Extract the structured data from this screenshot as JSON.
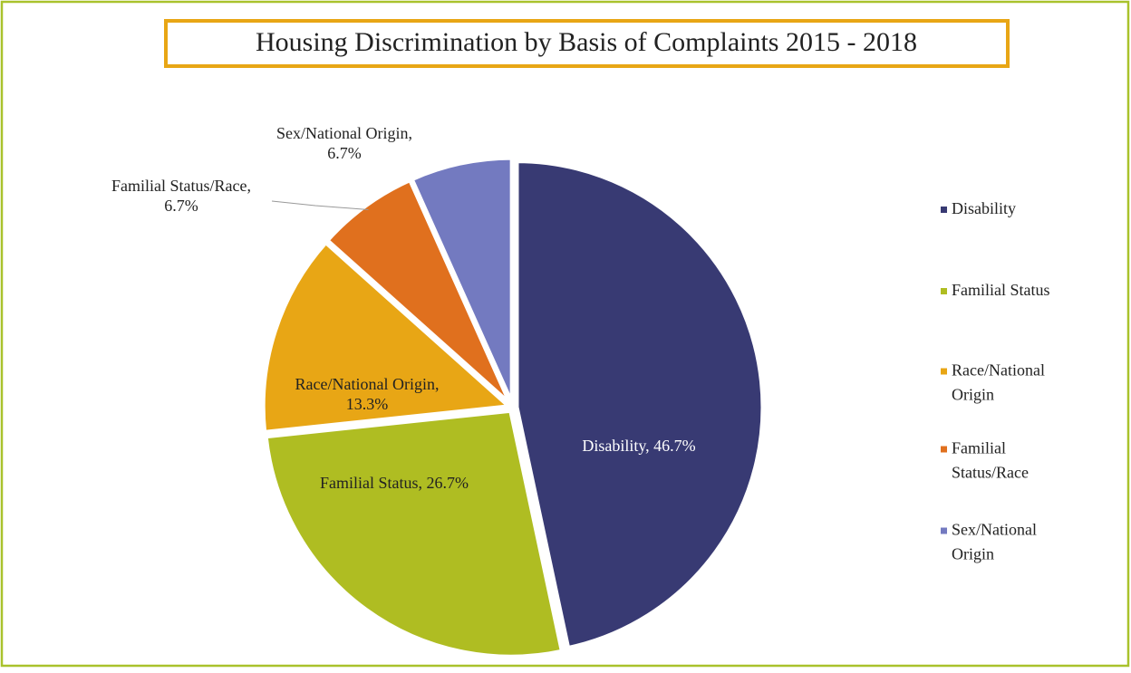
{
  "chart_data": {
    "type": "pie",
    "title": "Housing Discrimination by Basis of Complaints 2015 - 2018",
    "categories": [
      "Disability",
      "Familial Status",
      "Race/National Origin",
      "Familial Status/Race",
      "Sex/National Origin"
    ],
    "values": [
      46.7,
      26.7,
      13.3,
      6.7,
      6.7
    ],
    "value_labels": [
      "Disability, 46.7%",
      "Familial Status, 26.7%",
      "Race/National Origin, 13.3%",
      "Familial Status/Race, 6.7%",
      "Sex/National Origin, 6.7%"
    ],
    "colors": [
      "#383a73",
      "#afbd22",
      "#e8a615",
      "#e0701e",
      "#737ac0"
    ],
    "legend": "right"
  }
}
